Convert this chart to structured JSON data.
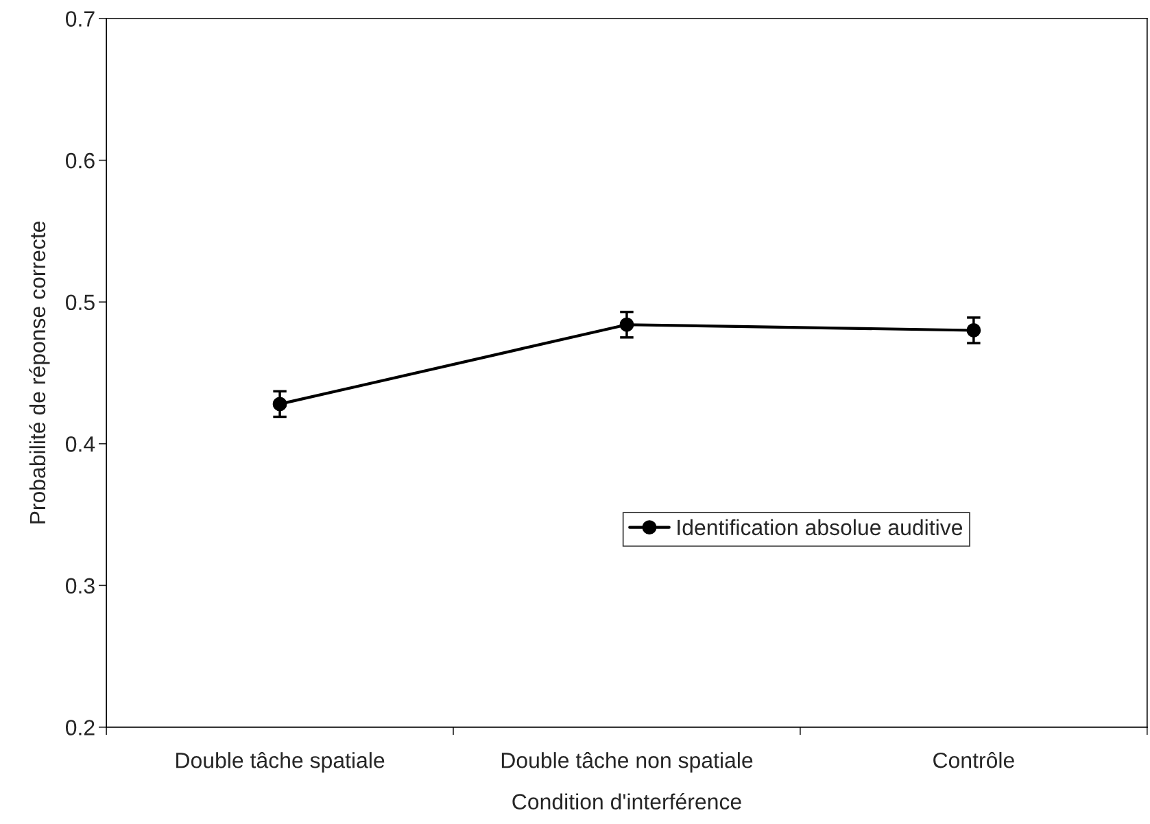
{
  "chart_data": {
    "type": "line",
    "xlabel": "Condition d'interférence",
    "ylabel": "Probabilité de réponse correcte",
    "categories": [
      "Double tâche spatiale",
      "Double tâche non spatiale",
      "Contrôle"
    ],
    "series": [
      {
        "name": "Identification absolue auditive",
        "color": "#000000",
        "values": [
          0.428,
          0.484,
          0.48
        ],
        "errors": [
          0.009,
          0.009,
          0.009
        ]
      }
    ],
    "ylim": [
      0.2,
      0.7
    ],
    "yticks": [
      0.2,
      0.3,
      0.4,
      0.5,
      0.6,
      0.7
    ],
    "marker": "circle",
    "line_style": "solid",
    "grid": false,
    "legend": "lower right"
  }
}
